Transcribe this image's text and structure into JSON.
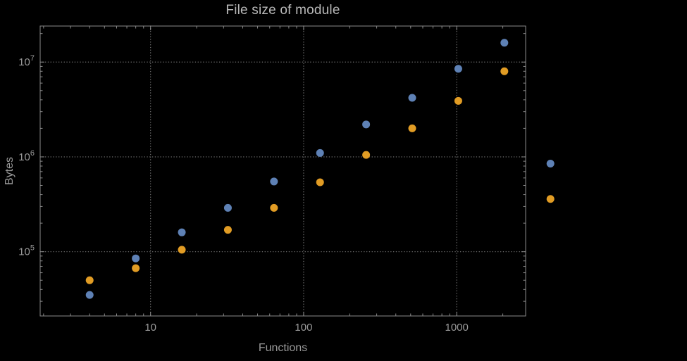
{
  "chart_data": {
    "type": "scatter",
    "title": "File size of module",
    "xlabel": "Functions",
    "ylabel": "Bytes",
    "xscale": "log",
    "yscale": "log",
    "xlim": [
      1.9,
      2820
    ],
    "ylim": [
      21000,
      24000000
    ],
    "xticks": [
      10,
      100,
      1000
    ],
    "yticks": [
      100000,
      1000000,
      10000000
    ],
    "grid": "dotted-major",
    "legend": "none",
    "clip_points_to_frame": false,
    "colors": {
      "series1": "#5E81B5",
      "series2": "#E19C24",
      "frame": "#8a8a8a",
      "grid": "#6a6a6a",
      "text": "#9a9a9a",
      "title_text": "#b8b8b8",
      "background": "#000000"
    },
    "series": [
      {
        "name": "series-1-blue",
        "color": "#5E81B5",
        "points": [
          [
            4,
            35000
          ],
          [
            8,
            85000
          ],
          [
            16,
            160000
          ],
          [
            32,
            290000
          ],
          [
            64,
            550000
          ],
          [
            128,
            1100000
          ],
          [
            256,
            2200000
          ],
          [
            512,
            4200000
          ],
          [
            1024,
            8500000
          ],
          [
            2048,
            16000000
          ],
          [
            4096,
            850000
          ]
        ]
      },
      {
        "name": "series-2-orange",
        "color": "#E19C24",
        "points": [
          [
            4,
            50000
          ],
          [
            8,
            67000
          ],
          [
            16,
            105000
          ],
          [
            32,
            170000
          ],
          [
            64,
            290000
          ],
          [
            128,
            540000
          ],
          [
            256,
            1050000
          ],
          [
            512,
            2000000
          ],
          [
            1024,
            3900000
          ],
          [
            2048,
            8000000
          ],
          [
            4096,
            360000
          ]
        ]
      }
    ]
  }
}
